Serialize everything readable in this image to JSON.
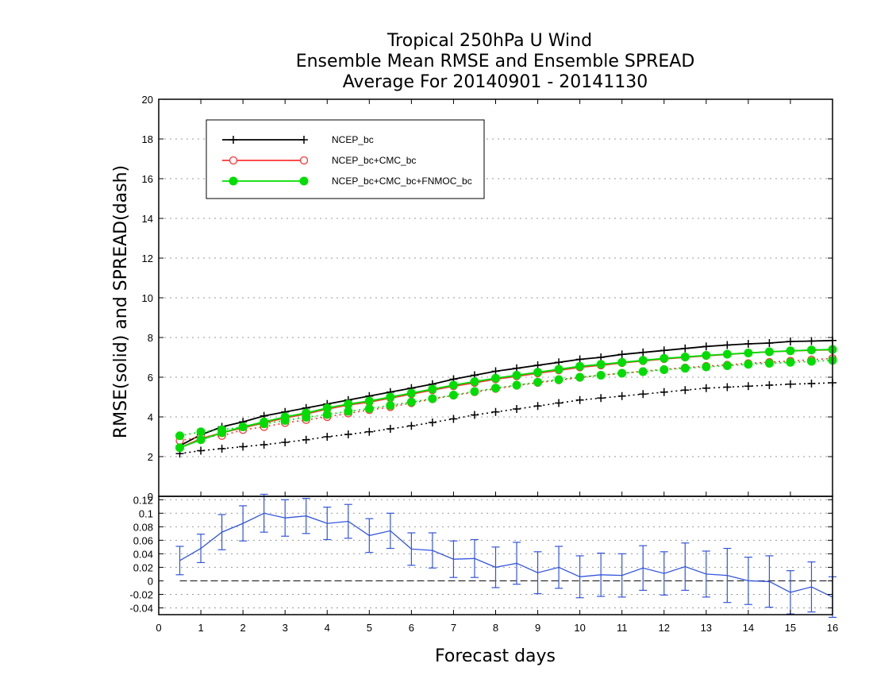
{
  "chart_data": [
    {
      "type": "line",
      "title": [
        "Tropical 250hPa U Wind",
        "Ensemble Mean RMSE and Ensemble SPREAD",
        "Average For 20140901 - 20141130"
      ],
      "xlabel": "Forecast days",
      "ylabel": "RMSE(solid) and SPREAD(dash)",
      "xlim": [
        0,
        16
      ],
      "ylim": [
        0,
        20
      ],
      "x_ticks": [
        0,
        1,
        2,
        3,
        4,
        5,
        6,
        7,
        8,
        9,
        10,
        11,
        12,
        13,
        14,
        15,
        16
      ],
      "y_ticks": [
        0,
        2,
        4,
        6,
        8,
        10,
        12,
        14,
        16,
        18,
        20
      ],
      "grid": true,
      "legend_position": "top-left",
      "x": [
        0.5,
        1,
        1.5,
        2,
        2.5,
        3,
        3.5,
        4,
        4.5,
        5,
        5.5,
        6,
        6.5,
        7,
        7.5,
        8,
        8.5,
        9,
        9.5,
        10,
        10.5,
        11,
        11.5,
        12,
        12.5,
        13,
        13.5,
        14,
        14.5,
        15,
        15.5,
        16
      ],
      "series": [
        {
          "name": "NCEP_bc",
          "color": "#000000",
          "marker": "plus",
          "style": "solid",
          "values": [
            2.55,
            3.1,
            3.5,
            3.75,
            4.05,
            4.25,
            4.45,
            4.65,
            4.85,
            5.05,
            5.25,
            5.45,
            5.65,
            5.9,
            6.1,
            6.3,
            6.45,
            6.6,
            6.75,
            6.9,
            7.0,
            7.15,
            7.25,
            7.35,
            7.45,
            7.55,
            7.62,
            7.68,
            7.72,
            7.8,
            7.82,
            7.85
          ]
        },
        {
          "name": "NCEP_bc",
          "color": "#000000",
          "marker": "plus",
          "style": "dotted",
          "values": [
            2.15,
            2.3,
            2.4,
            2.5,
            2.6,
            2.72,
            2.85,
            3.0,
            3.12,
            3.25,
            3.4,
            3.55,
            3.72,
            3.9,
            4.1,
            4.25,
            4.4,
            4.55,
            4.7,
            4.85,
            4.95,
            5.05,
            5.15,
            5.25,
            5.35,
            5.45,
            5.5,
            5.55,
            5.6,
            5.65,
            5.68,
            5.72
          ]
        },
        {
          "name": "NCEP_bc+CMC_bc",
          "color": "#ff3333",
          "marker": "circle-open",
          "style": "solid",
          "values": [
            2.45,
            2.9,
            3.2,
            3.45,
            3.7,
            3.95,
            4.15,
            4.4,
            4.6,
            4.75,
            4.95,
            5.15,
            5.35,
            5.55,
            5.72,
            5.9,
            6.05,
            6.2,
            6.35,
            6.5,
            6.6,
            6.72,
            6.82,
            6.92,
            7.0,
            7.08,
            7.15,
            7.22,
            7.28,
            7.32,
            7.36,
            7.38
          ]
        },
        {
          "name": "NCEP_bc+CMC_bc",
          "color": "#ff3333",
          "marker": "circle-open",
          "style": "dotted",
          "values": [
            2.8,
            3.0,
            3.05,
            3.35,
            3.5,
            3.7,
            3.85,
            4.0,
            4.18,
            4.35,
            4.5,
            4.7,
            4.9,
            5.08,
            5.25,
            5.42,
            5.58,
            5.72,
            5.85,
            5.98,
            6.1,
            6.2,
            6.3,
            6.4,
            6.48,
            6.56,
            6.62,
            6.7,
            6.76,
            6.82,
            6.88,
            6.95
          ]
        },
        {
          "name": "NCEP_bc+CMC_bc+FNMOC_bc",
          "color": "#00dd00",
          "marker": "circle-filled",
          "style": "solid",
          "values": [
            2.45,
            2.85,
            3.2,
            3.5,
            3.75,
            4.0,
            4.2,
            4.45,
            4.65,
            4.8,
            5.0,
            5.2,
            5.4,
            5.6,
            5.78,
            5.95,
            6.1,
            6.25,
            6.4,
            6.55,
            6.65,
            6.75,
            6.85,
            6.95,
            7.02,
            7.1,
            7.16,
            7.22,
            7.28,
            7.33,
            7.37,
            7.4
          ]
        },
        {
          "name": "NCEP_bc+CMC_bc+FNMOC_bc",
          "color": "#00dd00",
          "marker": "circle-filled",
          "style": "dotted",
          "values": [
            3.05,
            3.25,
            3.35,
            3.5,
            3.65,
            3.82,
            3.98,
            4.12,
            4.28,
            4.42,
            4.58,
            4.75,
            4.92,
            5.1,
            5.28,
            5.45,
            5.6,
            5.75,
            5.88,
            6.0,
            6.1,
            6.2,
            6.28,
            6.38,
            6.45,
            6.52,
            6.58,
            6.65,
            6.7,
            6.75,
            6.8,
            6.85
          ]
        }
      ]
    },
    {
      "type": "line",
      "xlim": [
        0,
        16
      ],
      "ylim": [
        -0.05,
        0.125
      ],
      "y_ticks": [
        -0.04,
        -0.02,
        0,
        0.02,
        0.04,
        0.06,
        0.08,
        0.1,
        0.12
      ],
      "y_tick_labels": [
        "-0.04",
        "-0.02",
        "0",
        "0.02",
        "0.04",
        "0.06",
        "0.08",
        "0.1",
        "0.12"
      ],
      "x_ticks": [
        0,
        1,
        2,
        3,
        4,
        5,
        6,
        7,
        8,
        9,
        10,
        11,
        12,
        13,
        14,
        15,
        16
      ],
      "grid": true,
      "reference_line": 0,
      "series": [
        {
          "color": "#3355dd",
          "x": [
            0.5,
            1,
            1.5,
            2,
            2.5,
            3,
            3.5,
            4,
            4.5,
            5,
            5.5,
            6,
            6.5,
            7,
            7.5,
            8,
            8.5,
            9,
            9.5,
            10,
            10.5,
            11,
            11.5,
            12,
            12.5,
            13,
            13.5,
            14,
            14.5,
            15,
            15.5,
            16
          ],
          "values": [
            0.03,
            0.048,
            0.072,
            0.085,
            0.1,
            0.093,
            0.096,
            0.085,
            0.088,
            0.067,
            0.074,
            0.047,
            0.045,
            0.032,
            0.033,
            0.02,
            0.026,
            0.012,
            0.02,
            0.006,
            0.009,
            0.008,
            0.019,
            0.011,
            0.021,
            0.01,
            0.008,
            0.0,
            -0.001,
            -0.017,
            -0.009,
            -0.024
          ],
          "error": [
            0.021,
            0.021,
            0.026,
            0.026,
            0.028,
            0.027,
            0.026,
            0.024,
            0.025,
            0.025,
            0.026,
            0.024,
            0.026,
            0.027,
            0.028,
            0.03,
            0.031,
            0.031,
            0.031,
            0.031,
            0.032,
            0.032,
            0.033,
            0.032,
            0.035,
            0.034,
            0.04,
            0.035,
            0.038,
            0.032,
            0.037,
            0.03
          ]
        }
      ]
    }
  ]
}
